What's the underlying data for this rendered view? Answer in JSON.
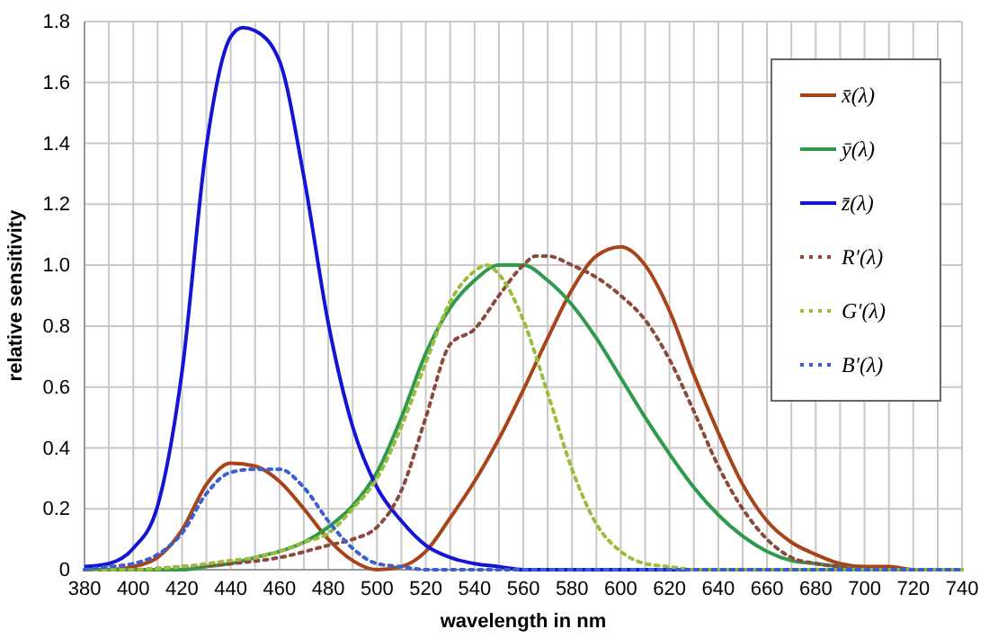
{
  "chart_data": {
    "type": "line",
    "xlabel": "wavelength in nm",
    "ylabel": "relative sensitivity",
    "xlim": [
      380,
      740
    ],
    "ylim": [
      0,
      1.8
    ],
    "xticks": [
      380,
      400,
      420,
      440,
      460,
      480,
      500,
      520,
      540,
      560,
      580,
      600,
      620,
      640,
      660,
      680,
      700,
      720,
      740
    ],
    "yticks": [
      {
        "value": 0,
        "label": "0"
      },
      {
        "value": 0.2,
        "label": "0.2"
      },
      {
        "value": 0.4,
        "label": "0.4"
      },
      {
        "value": 0.6,
        "label": "0.6"
      },
      {
        "value": 0.8,
        "label": "0.8"
      },
      {
        "value": 1,
        "label": "1.0"
      },
      {
        "value": 1.2,
        "label": "1.2"
      },
      {
        "value": 1.4,
        "label": "1.4"
      },
      {
        "value": 1.6,
        "label": "1.6"
      },
      {
        "value": 1.8,
        "label": "1.8"
      }
    ],
    "grid": true,
    "legend": "top right",
    "marker": "none",
    "series": [
      {
        "name": "x̄(λ)",
        "color": "#a8431a",
        "line_style": "solid",
        "x": [
          380,
          390,
          400,
          410,
          420,
          430,
          440,
          450,
          460,
          470,
          480,
          490,
          500,
          510,
          520,
          530,
          540,
          550,
          560,
          570,
          580,
          590,
          600,
          610,
          620,
          630,
          640,
          650,
          660,
          670,
          680,
          690,
          700,
          710,
          720,
          730,
          740
        ],
        "values": [
          0,
          0,
          0.01,
          0.04,
          0.13,
          0.28,
          0.35,
          0.34,
          0.29,
          0.2,
          0.1,
          0.03,
          0,
          0.01,
          0.06,
          0.17,
          0.29,
          0.43,
          0.59,
          0.76,
          0.92,
          1.03,
          1.06,
          1,
          0.85,
          0.64,
          0.45,
          0.28,
          0.16,
          0.09,
          0.05,
          0.02,
          0.01,
          0.01,
          0,
          0,
          0
        ]
      },
      {
        "name": "ȳ(λ)",
        "color": "#2f9a4c",
        "line_style": "solid",
        "x": [
          380,
          390,
          400,
          410,
          420,
          430,
          440,
          450,
          460,
          470,
          480,
          490,
          500,
          510,
          520,
          530,
          540,
          550,
          560,
          570,
          580,
          590,
          600,
          610,
          620,
          630,
          640,
          650,
          660,
          670,
          680,
          690,
          700,
          710
        ],
        "values": [
          0,
          0,
          0,
          0,
          0,
          0.01,
          0.02,
          0.04,
          0.06,
          0.09,
          0.14,
          0.21,
          0.32,
          0.5,
          0.71,
          0.86,
          0.95,
          1,
          1,
          0.95,
          0.87,
          0.76,
          0.63,
          0.5,
          0.38,
          0.27,
          0.18,
          0.11,
          0.06,
          0.03,
          0.02,
          0.01,
          0,
          0
        ]
      },
      {
        "name": "z̄(λ)",
        "color": "#1414d2",
        "line_style": "solid",
        "x": [
          380,
          390,
          400,
          410,
          420,
          430,
          440,
          445,
          450,
          460,
          470,
          480,
          490,
          500,
          510,
          520,
          530,
          540,
          550,
          560,
          570,
          580,
          600,
          620,
          640,
          660,
          680,
          700,
          720,
          740
        ],
        "values": [
          0.01,
          0.02,
          0.07,
          0.21,
          0.65,
          1.39,
          1.75,
          1.78,
          1.77,
          1.67,
          1.29,
          0.81,
          0.47,
          0.27,
          0.16,
          0.08,
          0.04,
          0.02,
          0.01,
          0,
          0,
          0,
          0,
          0,
          0,
          0,
          0,
          0,
          0,
          0
        ]
      },
      {
        "name": "R′(λ)",
        "color": "#8c4a3c",
        "line_style": "dotted",
        "x": [
          380,
          400,
          420,
          440,
          460,
          480,
          490,
          500,
          510,
          520,
          530,
          540,
          550,
          560,
          565,
          570,
          580,
          590,
          600,
          610,
          620,
          630,
          640,
          650,
          660,
          670,
          680,
          690,
          700,
          720,
          740
        ],
        "values": [
          0,
          0,
          0.01,
          0.02,
          0.04,
          0.08,
          0.1,
          0.14,
          0.26,
          0.5,
          0.74,
          0.79,
          0.9,
          1,
          1.03,
          1.03,
          1,
          0.96,
          0.9,
          0.82,
          0.69,
          0.52,
          0.34,
          0.2,
          0.1,
          0.04,
          0.02,
          0.01,
          0,
          0,
          0
        ]
      },
      {
        "name": "G′(λ)",
        "color": "#9cbd3c",
        "line_style": "dotted",
        "x": [
          380,
          400,
          420,
          440,
          450,
          460,
          470,
          480,
          490,
          500,
          510,
          520,
          530,
          540,
          545,
          550,
          560,
          570,
          580,
          590,
          600,
          610,
          620,
          630,
          640,
          660,
          680,
          700,
          720,
          740
        ],
        "values": [
          0,
          0,
          0.01,
          0.03,
          0.04,
          0.06,
          0.09,
          0.12,
          0.2,
          0.3,
          0.47,
          0.68,
          0.88,
          0.98,
          1,
          0.97,
          0.82,
          0.58,
          0.33,
          0.15,
          0.06,
          0.02,
          0.01,
          0,
          0,
          0,
          0,
          0,
          0,
          0
        ]
      },
      {
        "name": "B′(λ)",
        "color": "#3a60cf",
        "line_style": "dotted",
        "x": [
          380,
          390,
          400,
          410,
          420,
          430,
          440,
          450,
          460,
          470,
          480,
          490,
          500,
          510,
          520,
          540,
          560,
          580,
          600,
          620,
          640,
          660,
          680,
          700,
          720,
          740
        ],
        "values": [
          0,
          0.01,
          0.02,
          0.05,
          0.12,
          0.25,
          0.32,
          0.33,
          0.33,
          0.27,
          0.16,
          0.07,
          0.02,
          0.01,
          0,
          0,
          0,
          0,
          0,
          0,
          0,
          0,
          0,
          0,
          0,
          0
        ]
      }
    ]
  }
}
